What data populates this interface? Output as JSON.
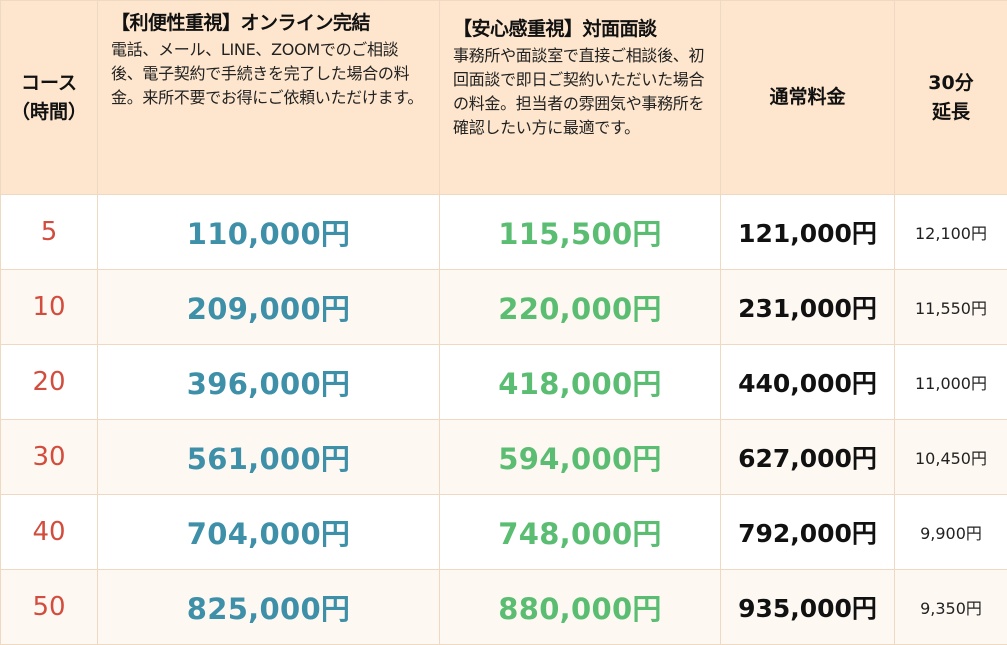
{
  "header": {
    "course": [
      "コース",
      "（時間）"
    ],
    "online_title": "【利便性重視】オンライン完結",
    "online_desc": "電話、メール、LINE、ZOOMでのご相談後、電子契約で手続きを完了した場合の料金。来所不要でお得にご依頼いただけます。",
    "face_title": "【安心感重視】対面面談",
    "face_desc": "事務所や面談室で直接ご相談後、初回面談で即日ご契約いただいた場合の料金。担当者の雰囲気や事務所を確認したい方に最適です。",
    "normal": "通常料金",
    "extension": [
      "30分",
      "延長"
    ]
  },
  "rows": [
    {
      "course": "5",
      "online": "110,000円",
      "face": "115,500円",
      "normal": "121,000円",
      "ext": "12,100円"
    },
    {
      "course": "10",
      "online": "209,000円",
      "face": "220,000円",
      "normal": "231,000円",
      "ext": "11,550円"
    },
    {
      "course": "20",
      "online": "396,000円",
      "face": "418,000円",
      "normal": "440,000円",
      "ext": "11,000円"
    },
    {
      "course": "30",
      "online": "561,000円",
      "face": "594,000円",
      "normal": "627,000円",
      "ext": "10,450円"
    },
    {
      "course": "40",
      "online": "704,000円",
      "face": "748,000円",
      "normal": "792,000円",
      "ext": "9,900円"
    },
    {
      "course": "50",
      "online": "825,000円",
      "face": "880,000円",
      "normal": "935,000円",
      "ext": "9,350円"
    }
  ],
  "colors": {
    "header_bg": "#fde6cd",
    "alt_row_bg": "#fef8f2",
    "border": "#efd9c3",
    "course": "#d24d3d",
    "online": "#3e8fa8",
    "face": "#5bbd72",
    "normal": "#111111"
  }
}
